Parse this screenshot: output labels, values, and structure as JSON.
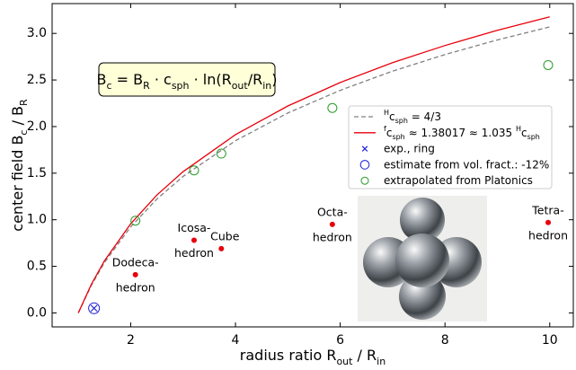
{
  "chart_data": {
    "type": "line",
    "xlabel": [
      "radius ratio ",
      {
        "text": "R"
      },
      {
        "text": "out",
        "sub": true
      },
      " / ",
      {
        "text": "R"
      },
      {
        "text": "in",
        "sub": true
      }
    ],
    "ylabel": [
      "center field ",
      {
        "text": "B"
      },
      {
        "text": "c",
        "sub": true
      },
      " / ",
      {
        "text": "B"
      },
      {
        "text": "R",
        "sub": true
      }
    ],
    "formula": [
      "B",
      {
        "text": "c",
        "sub": true
      },
      " = B",
      {
        "text": "R",
        "sub": true
      },
      " · c",
      {
        "text": "sph",
        "sub": true
      },
      " · ln(R",
      {
        "text": "out",
        "sub": true
      },
      "/R",
      {
        "text": "in",
        "sub": true
      },
      ")"
    ],
    "xlim": [
      0.5,
      10.45
    ],
    "ylim": [
      -0.15,
      3.32
    ],
    "xticks": [
      2,
      4,
      6,
      8,
      10
    ],
    "yticks": [
      {
        "value": 0,
        "label": "0.0"
      },
      0.5,
      {
        "value": 1,
        "label": "1.0"
      },
      1.5,
      {
        "value": 2,
        "label": "2.0"
      },
      2.5,
      {
        "value": 3,
        "label": "3.0"
      }
    ],
    "legend": "center right",
    "series": [
      {
        "name": [
          {
            "text": "H",
            "sup": true
          },
          "c",
          {
            "text": "sph",
            "sub": true
          },
          " = 4/3"
        ],
        "color": "#808080",
        "marker": "dashed",
        "x": [
          1,
          1.25,
          1.5,
          2,
          2.5,
          3,
          4,
          5,
          6,
          7,
          8,
          9,
          10
        ],
        "values": [
          0,
          0.297,
          0.541,
          0.924,
          1.222,
          1.465,
          1.848,
          2.146,
          2.389,
          2.595,
          2.773,
          2.93,
          3.07
        ]
      },
      {
        "name": [
          {
            "text": "f",
            "sup": true
          },
          "c",
          {
            "text": "sph",
            "sub": true
          },
          " ≈  1.38017 ≈ 1.035 ",
          {
            "text": "H",
            "sup": true
          },
          "c",
          {
            "text": "sph",
            "sub": true
          }
        ],
        "color": "#e8000b",
        "marker": "line",
        "x": [
          1,
          1.25,
          1.5,
          2,
          2.5,
          3,
          4,
          5,
          6,
          7,
          8,
          9,
          10
        ],
        "values": [
          0,
          0.308,
          0.56,
          0.957,
          1.265,
          1.516,
          1.913,
          2.221,
          2.473,
          2.686,
          2.87,
          3.033,
          3.178
        ]
      },
      {
        "name": [
          "exp., ring"
        ],
        "color": "#1f1fd6",
        "marker": "x",
        "x": [
          1.3
        ],
        "values": [
          0.05
        ]
      },
      {
        "name": [
          "estimate from vol. fract.: -12%"
        ],
        "color": "#1f1fd6",
        "marker": "open-circle",
        "x": [
          1.3
        ],
        "values": [
          0.05
        ]
      },
      {
        "name": [
          "extrapolated from Platonics"
        ],
        "color": "#2a9a2a",
        "marker": "open-circle",
        "x": [
          2.09,
          3.21,
          3.73,
          5.85,
          9.97
        ],
        "values": [
          0.99,
          1.53,
          1.71,
          2.2,
          2.66
        ]
      }
    ],
    "points": {
      "color": "#e8000b",
      "x": [
        2.09,
        3.21,
        3.73,
        5.85,
        9.97
      ],
      "values": [
        0.41,
        0.78,
        0.69,
        0.95,
        0.97
      ],
      "labels": [
        [
          "Dodeca-",
          "hedron"
        ],
        [
          "Icosa-",
          "hedron"
        ],
        [
          "Cube"
        ],
        [
          "Octa-",
          "hedron"
        ],
        [
          "Tetra-",
          "hedron"
        ]
      ]
    }
  }
}
